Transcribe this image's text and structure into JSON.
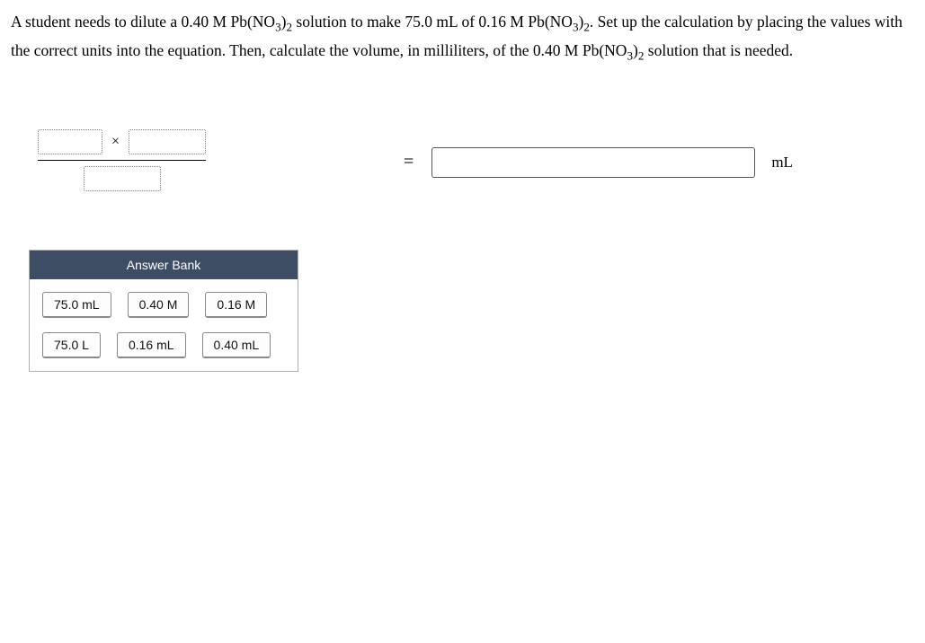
{
  "problem": {
    "line1_pre": "A student needs to dilute a 0.40 M Pb(NO",
    "line1_sub1": "3",
    "line1_mid1": ")",
    "line1_sub2": "2",
    "line1_mid2": " solution to make 75.0 mL of 0.16 M Pb(NO",
    "line1_sub3": "3",
    "line1_mid3": ")",
    "line1_sub4": "2",
    "line1_post": ". Set up the calculation by placing the values with the correct units into the equation. Then, calculate the volume, in milliliters, of the 0.40 M Pb(NO",
    "line1_sub5": "3",
    "line1_mid4": ")",
    "line1_sub6": "2",
    "line1_end": " solution that is needed."
  },
  "equation": {
    "operator": "×",
    "equals": "=",
    "result_unit": "mL",
    "answer_value": ""
  },
  "answer_bank": {
    "header": "Answer Bank",
    "tiles": [
      "75.0 mL",
      "0.40 M",
      "0.16 M",
      "75.0 L",
      "0.16 mL",
      "0.40 mL"
    ]
  },
  "colors": {
    "bank_header_bg": "#3d4d63",
    "bank_border": "#b0b0b0",
    "tile_border": "#888",
    "drop_border": "#7a7a7a"
  }
}
